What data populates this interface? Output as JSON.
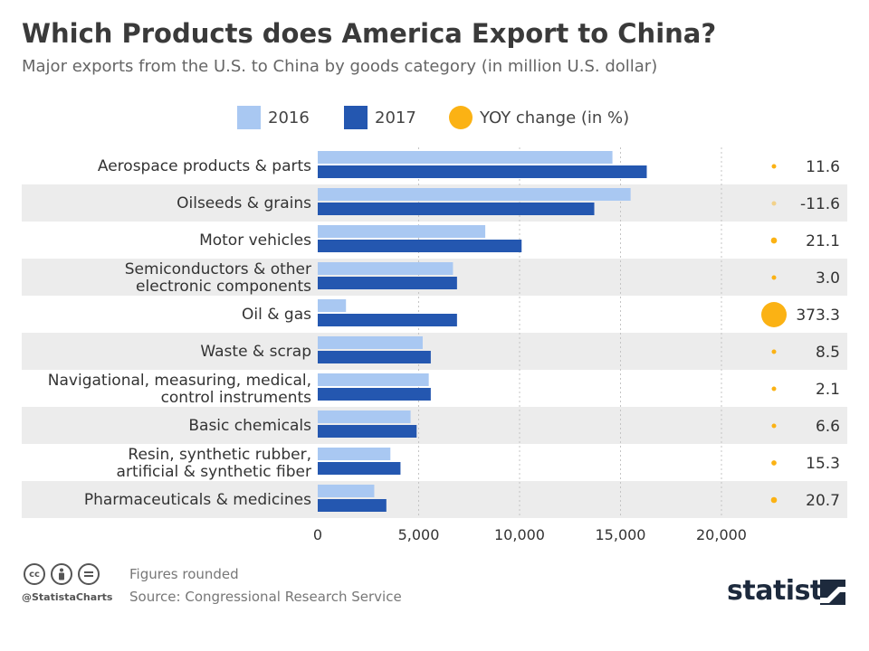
{
  "header": {
    "title": "Which Products does America Export to China?",
    "subtitle": "Major exports from the U.S. to China by goods category (in million U.S. dollar)"
  },
  "legend": {
    "items": [
      {
        "label": "2016",
        "color": "#a9c8f2",
        "shape": "square"
      },
      {
        "label": "2017",
        "color": "#2457b0",
        "shape": "square"
      },
      {
        "label": "YOY change (in %)",
        "color": "#fbb214",
        "shape": "circle"
      }
    ]
  },
  "chart_data": {
    "type": "bar",
    "orientation": "horizontal",
    "categories": [
      [
        "Aerospace products & parts"
      ],
      [
        "Oilseeds & grains"
      ],
      [
        "Motor vehicles"
      ],
      [
        "Semiconductors & other",
        "electronic components"
      ],
      [
        "Oil & gas"
      ],
      [
        "Waste & scrap"
      ],
      [
        "Navigational, measuring, medical,",
        "control instruments"
      ],
      [
        "Basic chemicals"
      ],
      [
        "Resin, synthetic rubber,",
        "artificial & synthetic fiber"
      ],
      [
        "Pharmaceuticals & medicines"
      ]
    ],
    "series": [
      {
        "name": "2016",
        "color": "#a9c8f2",
        "values": [
          14600,
          15500,
          8300,
          6700,
          1400,
          5200,
          5500,
          4600,
          3600,
          2800
        ]
      },
      {
        "name": "2017",
        "color": "#2457b0",
        "values": [
          16300,
          13700,
          10100,
          6900,
          6900,
          5600,
          5600,
          4900,
          4100,
          3400
        ]
      }
    ],
    "yoy_change": {
      "name": "YOY change (in %)",
      "color": "#fbb214",
      "values": [
        "11.6",
        "-11.6",
        "21.1",
        "3.0",
        "373.3",
        "8.5",
        "2.1",
        "6.6",
        "15.3",
        "20.7"
      ],
      "numeric": [
        11.6,
        -11.6,
        21.1,
        3.0,
        373.3,
        8.5,
        2.1,
        6.6,
        15.3,
        20.7
      ]
    },
    "xlim": [
      0,
      20000
    ],
    "xticks": [
      0,
      5000,
      10000,
      15000,
      20000
    ],
    "xtick_labels": [
      "0",
      "5,000",
      "10,000",
      "15,000",
      "20,000"
    ],
    "grid": "vertical dotted",
    "legend_position": "top-center",
    "row_band_color": "#ececec"
  },
  "footer": {
    "note": "Figures rounded",
    "source": "Source: Congressional Research Service",
    "handle": "@StatistaCharts",
    "brand": "statista",
    "cc_icons": [
      "cc",
      "by",
      "nd"
    ]
  }
}
